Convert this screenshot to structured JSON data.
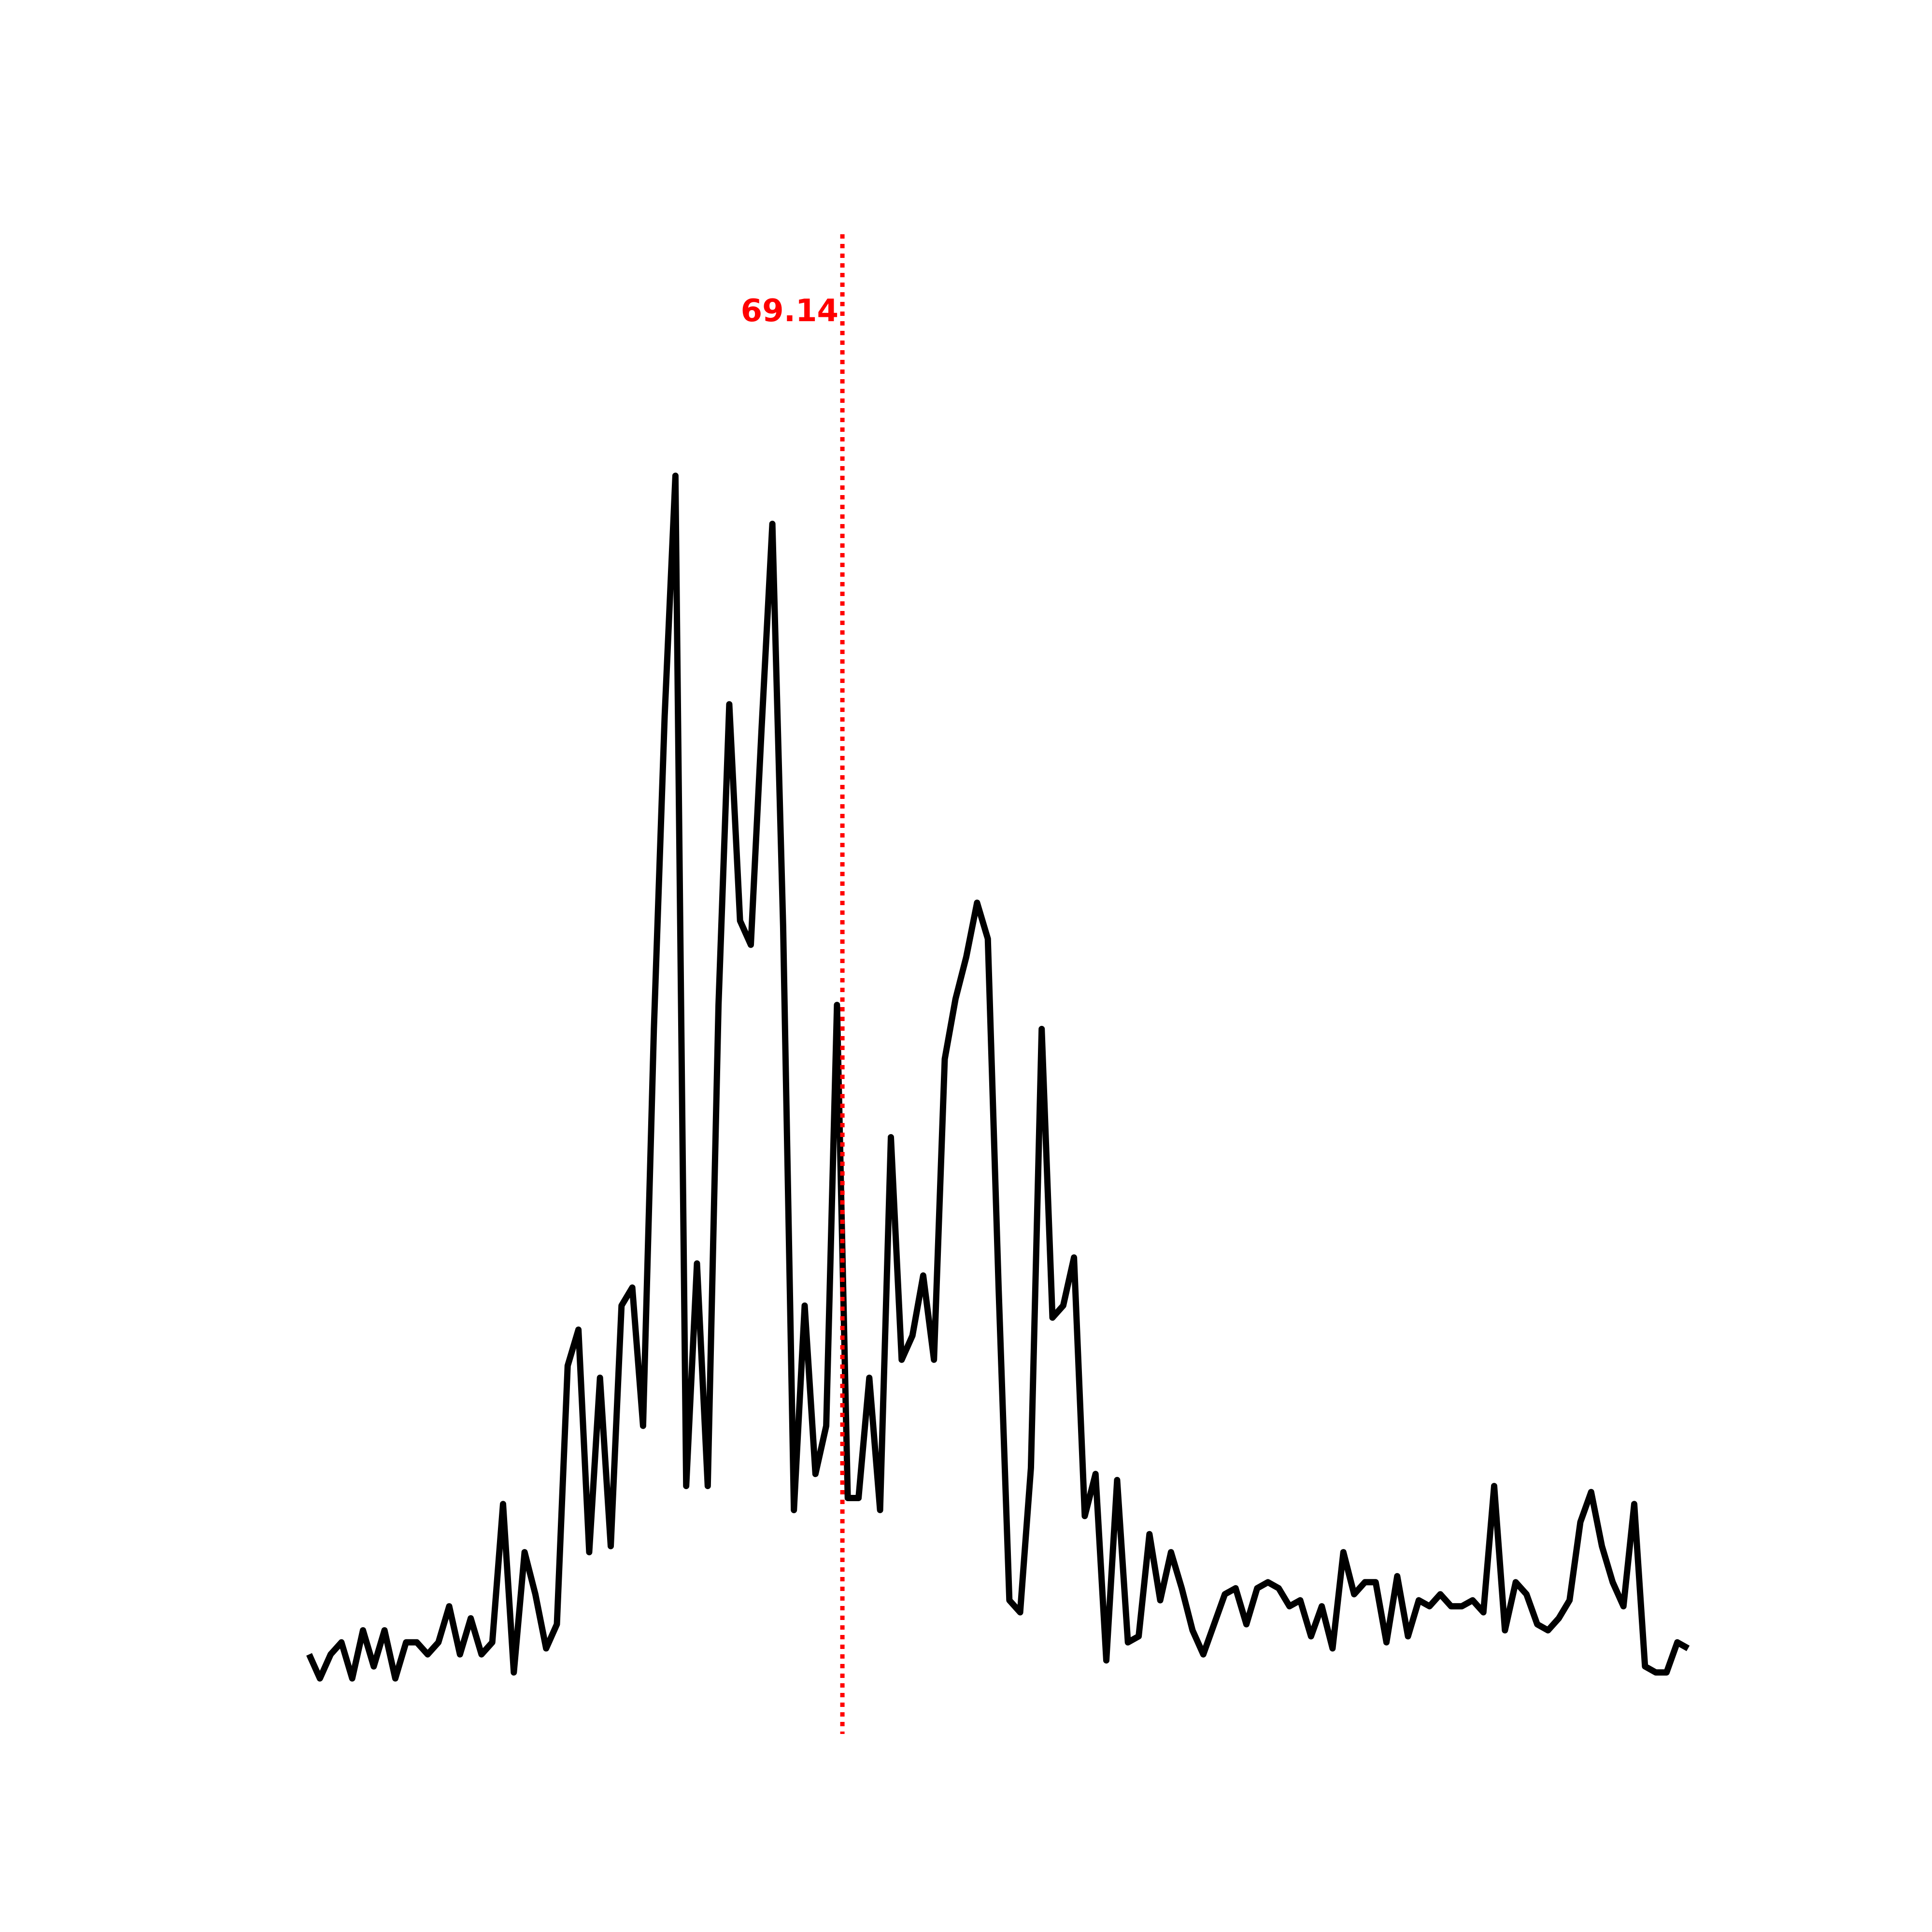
{
  "chart_data": {
    "type": "line",
    "title": "",
    "xlabel": "",
    "ylabel": "",
    "axes_visible": false,
    "grid": false,
    "xlim": [
      0,
      128
    ],
    "ylim": [
      0,
      1
    ],
    "series": [
      {
        "color": "#000000",
        "values": [
          0.02,
          0.0,
          0.02,
          0.03,
          0.0,
          0.04,
          0.01,
          0.04,
          0.0,
          0.03,
          0.03,
          0.02,
          0.03,
          0.06,
          0.02,
          0.05,
          0.02,
          0.03,
          0.145,
          0.005,
          0.105,
          0.07,
          0.025,
          0.045,
          0.26,
          0.29,
          0.105,
          0.25,
          0.11,
          0.31,
          0.325,
          0.21,
          0.54,
          0.8,
          1.0,
          0.16,
          0.345,
          0.16,
          0.56,
          0.81,
          0.63,
          0.61,
          0.79,
          0.96,
          0.625,
          0.14,
          0.31,
          0.17,
          0.21,
          0.56,
          0.15,
          0.15,
          0.25,
          0.14,
          0.45,
          0.265,
          0.285,
          0.335,
          0.265,
          0.515,
          0.565,
          0.6,
          0.645,
          0.615,
          0.325,
          0.065,
          0.055,
          0.175,
          0.54,
          0.3,
          0.31,
          0.35,
          0.135,
          0.17,
          0.015,
          0.165,
          0.03,
          0.035,
          0.12,
          0.065,
          0.105,
          0.075,
          0.04,
          0.02,
          0.045,
          0.07,
          0.075,
          0.045,
          0.075,
          0.08,
          0.075,
          0.06,
          0.065,
          0.035,
          0.06,
          0.025,
          0.105,
          0.07,
          0.08,
          0.08,
          0.03,
          0.085,
          0.035,
          0.065,
          0.06,
          0.07,
          0.06,
          0.06,
          0.065,
          0.055,
          0.16,
          0.04,
          0.08,
          0.07,
          0.045,
          0.04,
          0.05,
          0.065,
          0.13,
          0.155,
          0.11,
          0.08,
          0.06,
          0.145,
          0.01,
          0.005,
          0.005,
          0.03,
          0.025
        ]
      }
    ],
    "marker": {
      "x": 49.5,
      "label": "69.14",
      "color": "#ff0000",
      "style": "dotted"
    }
  }
}
